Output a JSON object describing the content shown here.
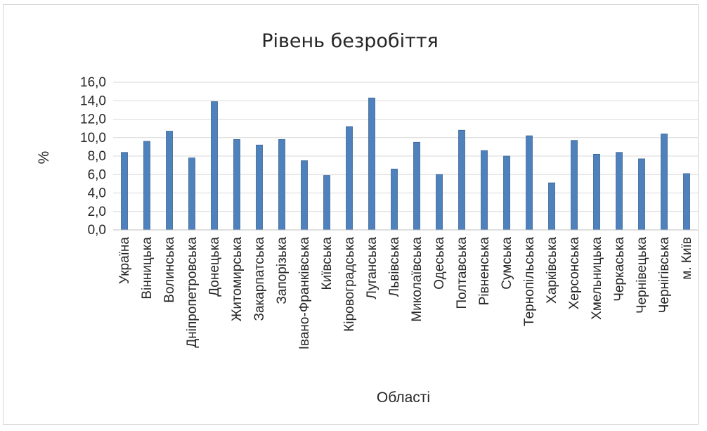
{
  "chart_data": {
    "type": "bar",
    "title": "Рівень безробіття",
    "xlabel": "Області",
    "ylabel": "%",
    "ylim": [
      0,
      16
    ],
    "yticks": [
      "0,0",
      "2,0",
      "4,0",
      "6,0",
      "8,0",
      "10,0",
      "12,0",
      "14,0",
      "16,0"
    ],
    "grid": true,
    "legend": "none",
    "bar_color": "#4f81bd",
    "categories": [
      "Україна",
      "Вінницька",
      "Волинська",
      "Дніпропетровська",
      "Донецька",
      "Житомирська",
      "Закарпатська",
      "Запорізька",
      "Івано-Франківська",
      "Київська",
      "Кіровоградська",
      "Луганська",
      "Львівська",
      "Миколаївська",
      "Одеська",
      "Полтавська",
      "Рівненська",
      "Сумська",
      "Тернопільська",
      "Харківська",
      "Херсонська",
      "Хмельницька",
      "Черкаська",
      "Чернівецька",
      "Чернігівська",
      "м. Київ"
    ],
    "values": [
      8.4,
      9.6,
      10.7,
      7.8,
      13.9,
      9.8,
      9.2,
      9.8,
      7.5,
      5.9,
      11.2,
      14.3,
      6.6,
      9.5,
      6.0,
      10.8,
      8.6,
      8.0,
      10.2,
      5.1,
      9.7,
      8.2,
      8.4,
      7.7,
      10.4,
      6.1
    ]
  }
}
